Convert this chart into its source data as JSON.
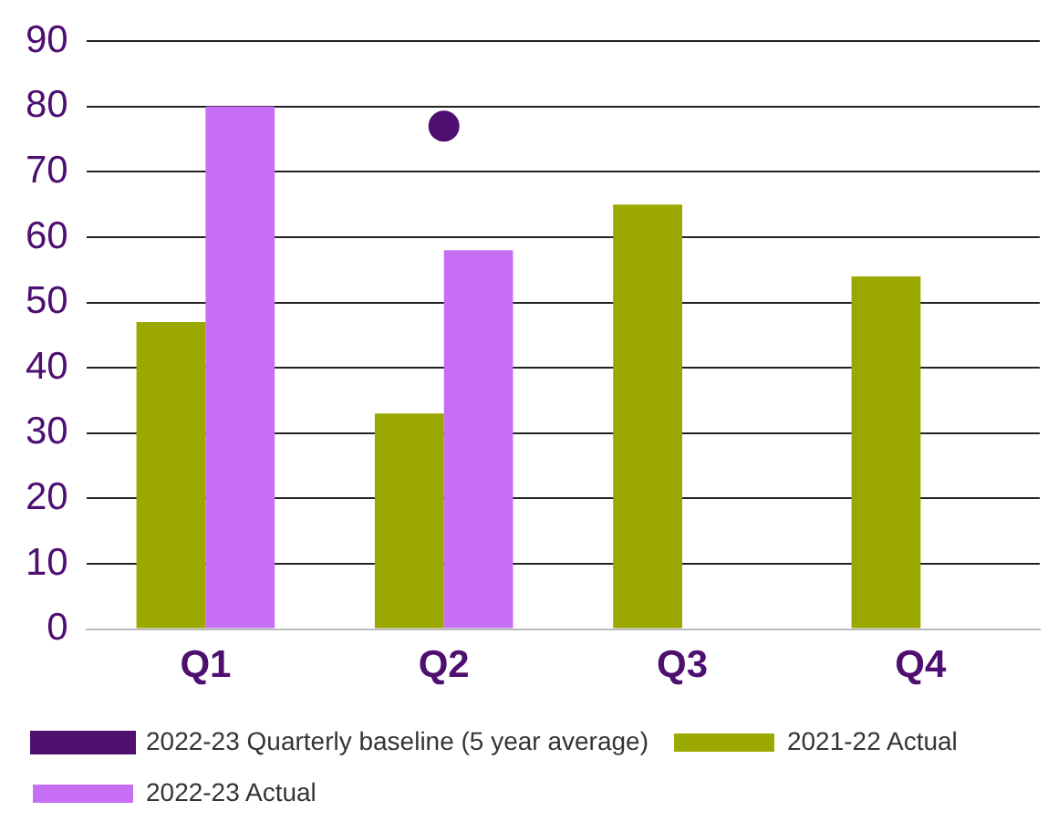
{
  "chart_data": {
    "type": "bar",
    "categories": [
      "Q1",
      "Q2",
      "Q3",
      "Q4"
    ],
    "series": [
      {
        "name": "2021-22 Actual",
        "color": "#9aa800",
        "values": [
          47,
          33,
          65,
          54
        ]
      },
      {
        "name": "2022-23 Actual",
        "color": "#c66ff5",
        "values": [
          80,
          58,
          null,
          null
        ]
      },
      {
        "name": "2022-23 Quarterly baseline (5 year average)",
        "type": "line",
        "color": "#4e0f70",
        "marker": "circle",
        "values": [
          null,
          77,
          null,
          null
        ]
      }
    ],
    "ylim": [
      0,
      90
    ],
    "yticks": [
      0,
      10,
      20,
      30,
      40,
      50,
      60,
      70,
      80,
      90
    ],
    "grid": "y",
    "legend": "bottom"
  }
}
